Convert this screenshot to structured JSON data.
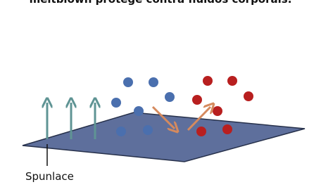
{
  "caption": "meltblown protege contra fluidos corporais.",
  "label": "Spunlace"
}
